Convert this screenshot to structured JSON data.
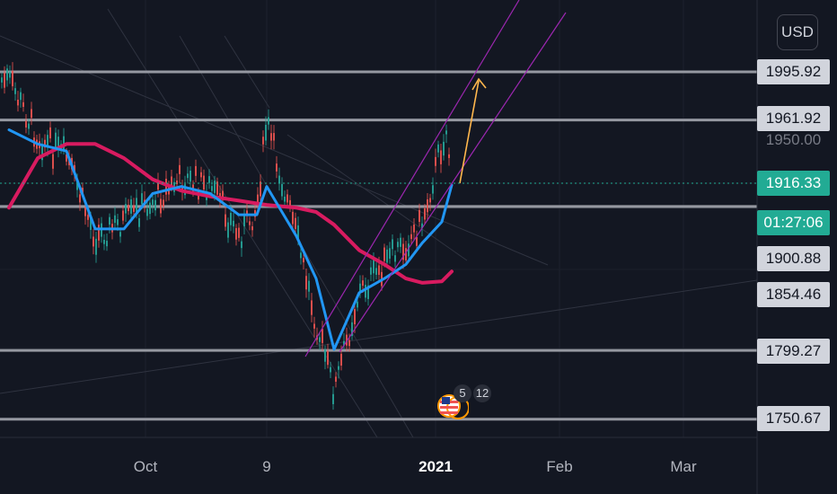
{
  "colors": {
    "background": "#131722",
    "level_line": "#9598a1",
    "ma_fast": "#2196f3",
    "ma_slow": "#d81b60",
    "channel": "#9c27b0",
    "arrow": "#ffb74d",
    "candle_up": "#26a69a",
    "candle_down": "#ef5350",
    "current_price": "#22ab94"
  },
  "currency": "USD",
  "price_scale": {
    "levels": [
      "1995.92",
      "1961.92",
      "1900.88",
      "1854.46",
      "1799.27",
      "1750.67"
    ],
    "hidden_label": "1950.00",
    "current_price": "1916.33",
    "countdown": "01:27:06"
  },
  "time_axis": {
    "ticks": [
      {
        "label": "Oct",
        "bold": false
      },
      {
        "label": "9",
        "bold": false
      },
      {
        "label": "2021",
        "bold": true
      },
      {
        "label": "Feb",
        "bold": false
      },
      {
        "label": "Mar",
        "bold": false
      }
    ]
  },
  "events": {
    "flag_icon": "us-flag-icon",
    "badge_1": "5",
    "badge_2": "12"
  },
  "chart_data": {
    "type": "line",
    "instrument_currency": "USD",
    "y_unit": "USD",
    "horizontal_levels": [
      1995.92,
      1961.92,
      1916.33,
      1900.88,
      1854.46,
      1799.27,
      1750.67
    ],
    "x_ticks": [
      "Oct",
      "9",
      "2021",
      "Feb",
      "Mar"
    ],
    "series": [
      {
        "role": "price",
        "x": [
          "Sep 1",
          "Sep 8",
          "Sep 15",
          "Sep 22",
          "Sep 29",
          "Oct 6",
          "Oct 13",
          "Oct 20",
          "Oct 27",
          "Nov 3",
          "Nov 9",
          "Nov 16",
          "Nov 23",
          "Nov 30",
          "Dec 7",
          "Dec 14",
          "Dec 21",
          "Dec 28",
          "Jan 4",
          "Jan 6",
          "Jan 8"
        ],
        "values": [
          1990,
          1950,
          1935,
          1880,
          1890,
          1905,
          1920,
          1915,
          1880,
          1900,
          1960,
          1880,
          1820,
          1770,
          1840,
          1860,
          1875,
          1890,
          1945,
          1955,
          1916
        ]
      },
      {
        "role": "ma-fast",
        "x": [
          "Sep 1",
          "Sep 8",
          "Sep 15",
          "Sep 22",
          "Sep 29",
          "Oct 6",
          "Oct 13",
          "Oct 20",
          "Oct 27",
          "Nov 3",
          "Nov 9",
          "Nov 16",
          "Nov 23",
          "Nov 30",
          "Dec 7",
          "Dec 14",
          "Dec 21",
          "Dec 28",
          "Jan 4",
          "Jan 8"
        ],
        "values": [
          1955,
          1945,
          1940,
          1885,
          1885,
          1910,
          1915,
          1910,
          1895,
          1895,
          1915,
          1880,
          1850,
          1800,
          1840,
          1850,
          1860,
          1875,
          1890,
          1916
        ]
      },
      {
        "role": "ma-slow",
        "x": [
          "Sep 1",
          "Sep 8",
          "Sep 15",
          "Sep 22",
          "Sep 29",
          "Oct 6",
          "Oct 13",
          "Oct 20",
          "Oct 27",
          "Nov 3",
          "Nov 9",
          "Nov 16",
          "Nov 23",
          "Nov 30",
          "Dec 7",
          "Dec 14",
          "Dec 21",
          "Dec 28",
          "Jan 4",
          "Jan 8"
        ],
        "values": [
          1900,
          1935,
          1945,
          1945,
          1935,
          1920,
          1912,
          1908,
          1905,
          1903,
          1902,
          1900,
          1897,
          1888,
          1870,
          1860,
          1850,
          1847,
          1848,
          1855
        ]
      }
    ]
  }
}
